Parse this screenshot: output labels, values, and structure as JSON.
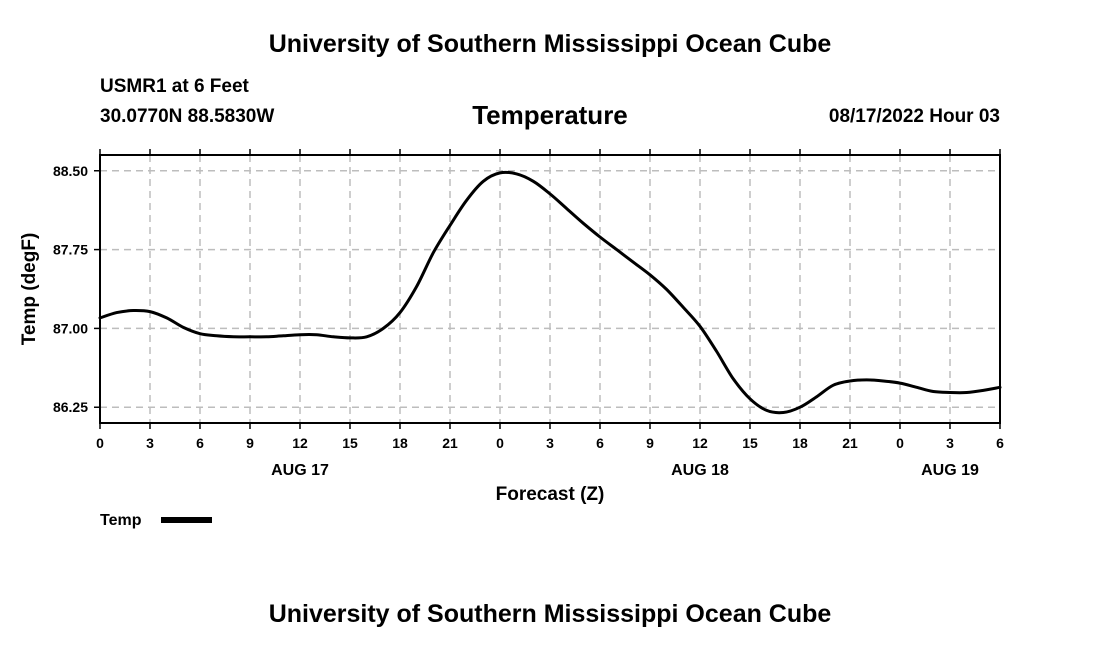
{
  "page": {
    "top_title": "University of Southern Mississippi Ocean Cube",
    "bottom_title": "University of Southern Mississippi Ocean Cube",
    "station": "USMR1 at 6 Feet",
    "location": "30.0770N  88.5830W",
    "datetime": "08/17/2022 Hour 03"
  },
  "chart_data": {
    "type": "line",
    "title": "Temperature",
    "xlabel": "Forecast (Z)",
    "ylabel": "Temp (degF)",
    "xlim": [
      0,
      54
    ],
    "ylim": [
      86.1,
      88.65
    ],
    "yticks": [
      86.25,
      87.0,
      87.75,
      88.5
    ],
    "ytick_labels": [
      "86.25",
      "87.00",
      "87.75",
      "88.50"
    ],
    "xticks": [
      0,
      3,
      6,
      9,
      12,
      15,
      18,
      21,
      24,
      27,
      30,
      33,
      36,
      39,
      42,
      45,
      48,
      51,
      54
    ],
    "xtick_labels": [
      "0",
      "3",
      "6",
      "9",
      "12",
      "15",
      "18",
      "21",
      "0",
      "3",
      "6",
      "9",
      "12",
      "15",
      "18",
      "21",
      "0",
      "3",
      "6"
    ],
    "date_labels": [
      {
        "label": "AUG 17",
        "at": 12
      },
      {
        "label": "AUG 18",
        "at": 36
      },
      {
        "label": "AUG 19",
        "at": 51
      }
    ],
    "grid": true,
    "legend": {
      "position": "bottom-left",
      "entries": [
        "Temp"
      ]
    },
    "series": [
      {
        "name": "Temp",
        "x": [
          0,
          1,
          2,
          3,
          4,
          5,
          6,
          7,
          8,
          9,
          10,
          11,
          12,
          13,
          14,
          15,
          16,
          17,
          18,
          19,
          20,
          21,
          22,
          23,
          24,
          25,
          26,
          27,
          28,
          29,
          30,
          31,
          32,
          33,
          34,
          35,
          36,
          37,
          38,
          39,
          40,
          41,
          42,
          43,
          44,
          45,
          46,
          47,
          48,
          49,
          50,
          51,
          52,
          53,
          54
        ],
        "values": [
          87.1,
          87.15,
          87.17,
          87.16,
          87.1,
          87.01,
          86.95,
          86.93,
          86.92,
          86.92,
          86.92,
          86.93,
          86.94,
          86.94,
          86.92,
          86.91,
          86.92,
          87.0,
          87.15,
          87.4,
          87.72,
          87.98,
          88.22,
          88.4,
          88.48,
          88.47,
          88.4,
          88.28,
          88.14,
          88.0,
          87.87,
          87.75,
          87.63,
          87.51,
          87.37,
          87.2,
          87.02,
          86.78,
          86.52,
          86.33,
          86.22,
          86.2,
          86.25,
          86.35,
          86.46,
          86.5,
          86.51,
          86.5,
          86.48,
          86.44,
          86.4,
          86.39,
          86.39,
          86.41,
          86.44
        ]
      }
    ]
  }
}
